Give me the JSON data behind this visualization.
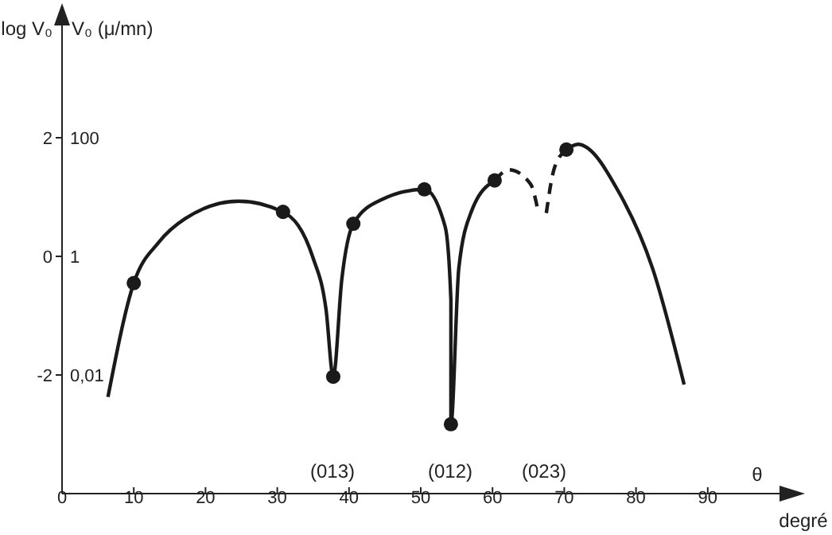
{
  "chart_data": {
    "type": "line",
    "xlabel": "θ",
    "ylabel": "log V₀",
    "y2label": "V₀ (μ/mn)",
    "xlim": [
      0,
      100
    ],
    "xticks": [
      0,
      10,
      20,
      30,
      40,
      50,
      60,
      70,
      80,
      90
    ],
    "ylim": [
      -4,
      4
    ],
    "yticks": [
      -2,
      0,
      2
    ],
    "log": "y2",
    "y2lim": [
      0.0001,
      10000
    ],
    "y2ticks": [
      {
        "value": 0.01,
        "label": "0,01"
      },
      1,
      100
    ],
    "grid": false,
    "legend": false,
    "annotations": [
      "(013)",
      "(012)",
      "(023)",
      "degré"
    ],
    "series": [
      {
        "type": "line",
        "color": "#1a1a1a",
        "line_style": "solid",
        "marker": "none",
        "x": [
          6.4,
          10,
          13.5,
          17.2,
          24.6,
          30.8,
          35,
          36.8,
          37.8,
          39,
          40.6,
          44.6,
          50.5,
          53.4,
          54.2,
          54.2,
          55.3,
          57.1,
          60.3
        ],
        "values": [
          -2.37,
          -0.45,
          0.24,
          0.64,
          0.93,
          0.75,
          -0.03,
          -0.9,
          -2.03,
          -0.38,
          0.55,
          0.96,
          1.13,
          0.5,
          -0.74,
          -2.83,
          -0.2,
          0.77,
          1.28
        ]
      },
      {
        "type": "line",
        "color": "#1a1a1a",
        "line_style": "dashed",
        "marker": "none",
        "x": [
          60.3,
          62.3,
          65.3,
          66.4,
          67,
          67.5,
          68.6,
          70.3
        ],
        "values": [
          1.28,
          1.46,
          1.22,
          0.73,
          null,
          0.73,
          1.48,
          1.8
        ]
      },
      {
        "type": "line",
        "color": "#1a1a1a",
        "line_style": "solid",
        "marker": "none",
        "x": [
          70.3,
          71.9,
          77.8,
          82.3,
          86.7
        ],
        "values": [
          1.8,
          1.89,
          1.04,
          -0.2,
          -2.16
        ]
      },
      {
        "type": "scatter",
        "color": "#1a1a1a",
        "marker": "circle",
        "x": [
          10,
          30.8,
          37.8,
          40.6,
          50.5,
          54.2,
          60.3,
          70.3
        ],
        "values": [
          -0.45,
          0.75,
          -2.03,
          0.55,
          1.13,
          -2.83,
          1.28,
          1.8
        ]
      }
    ]
  }
}
